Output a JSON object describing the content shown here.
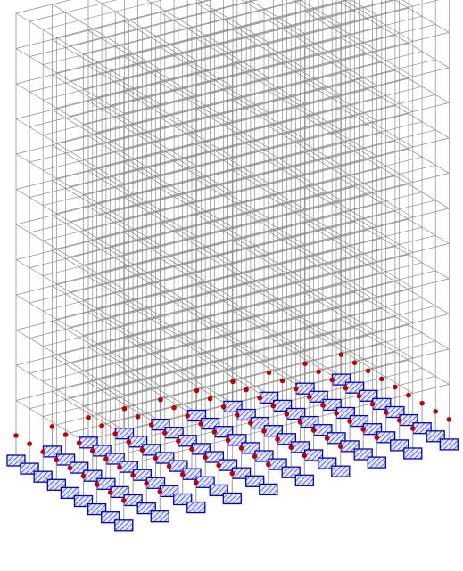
{
  "model": {
    "bays_x": 9,
    "bays_y": 8,
    "stories": 12
  },
  "colors": {
    "background": "#ffffff",
    "frame_line": "#8c8c8c",
    "support_stem": "#9a9a9a",
    "node_marker": "#c00000",
    "footing_fill": "#e4e8ff",
    "footing_border": "#0000c8",
    "footing_hatch": "#2a3dc8"
  }
}
